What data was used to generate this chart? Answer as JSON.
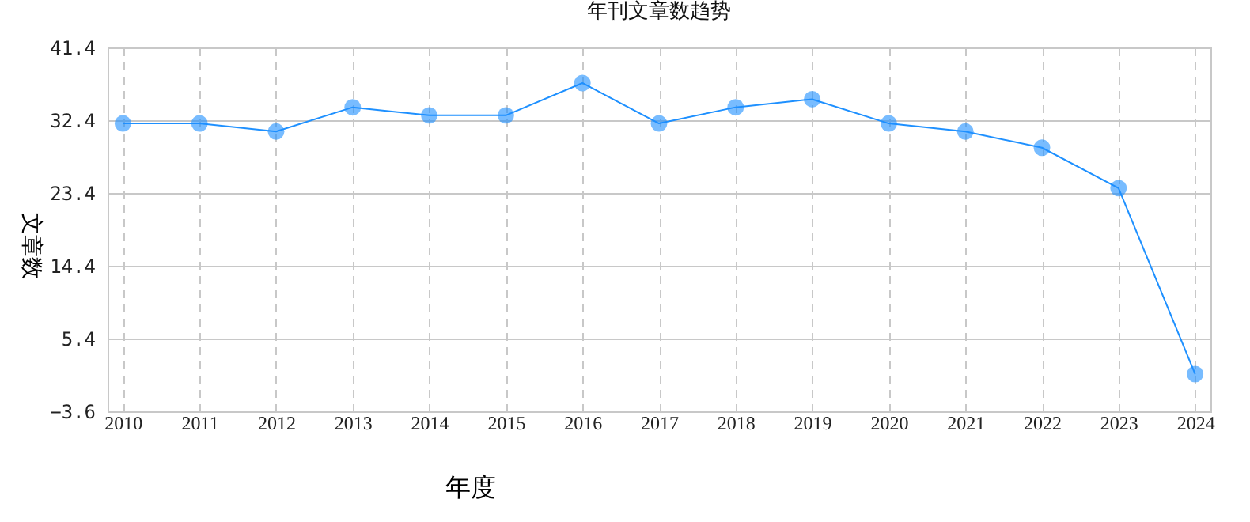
{
  "chart_data": {
    "type": "line",
    "title": "年刊文章数趋势",
    "xlabel": "年度",
    "ylabel": "文章数",
    "categories": [
      "2010",
      "2011",
      "2012",
      "2013",
      "2014",
      "2015",
      "2016",
      "2017",
      "2018",
      "2019",
      "2020",
      "2021",
      "2022",
      "2023",
      "2024"
    ],
    "series": [
      {
        "color": "#1e90ff",
        "values": [
          32,
          32,
          31,
          34,
          33,
          33,
          37,
          32,
          34,
          35,
          32,
          31,
          29,
          24,
          1
        ]
      }
    ],
    "ylim": [
      -3.6,
      41.4
    ],
    "yticks": [
      -3.6,
      5.4,
      14.4,
      23.4,
      32.4,
      41.4
    ],
    "grid": true,
    "marker": "circle",
    "line_style": "solid"
  }
}
